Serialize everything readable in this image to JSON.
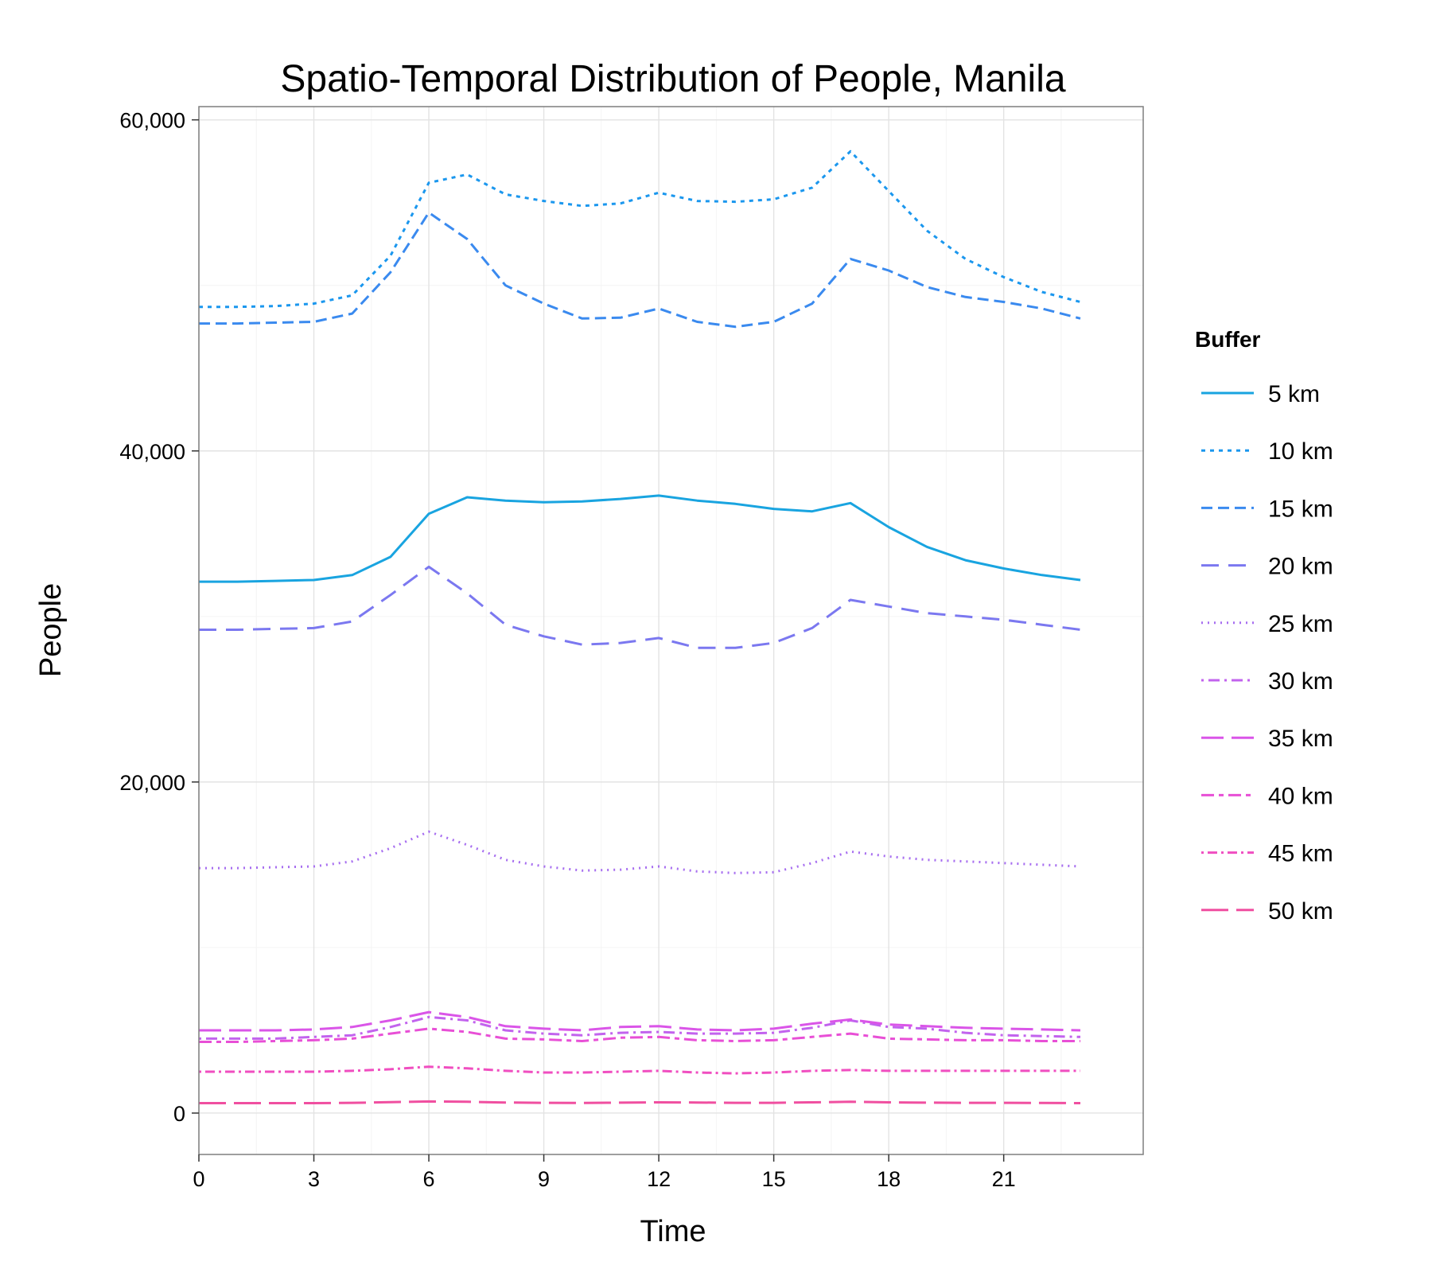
{
  "chart_data": {
    "type": "line",
    "title": "Spatio-Temporal Distribution of People, Manila",
    "xlabel": "Time",
    "ylabel": "People",
    "xlim": [
      0,
      23
    ],
    "ylim": [
      -2500,
      60800
    ],
    "x_ticks": [
      0,
      3,
      6,
      9,
      12,
      15,
      18,
      21
    ],
    "x_tick_labels": [
      "0",
      "3",
      "6",
      "9",
      "12",
      "15",
      "18",
      "21"
    ],
    "y_ticks": [
      0,
      20000,
      40000,
      60000
    ],
    "y_tick_labels": [
      "0",
      "20,000",
      "40,000",
      "60,000"
    ],
    "grid": true,
    "legend_position": "right",
    "legend_title": "Buffer",
    "x": [
      0,
      1,
      2,
      3,
      4,
      5,
      6,
      7,
      8,
      9,
      10,
      11,
      12,
      13,
      14,
      15,
      16,
      17,
      18,
      19,
      20,
      21,
      22,
      23
    ],
    "series": [
      {
        "name": "5 km",
        "color": "#19a4e0",
        "dash": "solid",
        "values": [
          32100,
          32100,
          32150,
          32200,
          32500,
          33600,
          36200,
          37200,
          37000,
          36900,
          36950,
          37100,
          37300,
          37000,
          36800,
          36500,
          36350,
          36850,
          35400,
          34200,
          33400,
          32900,
          32500,
          32200
        ]
      },
      {
        "name": "10 km",
        "color": "#1b97ee",
        "dash": "dot",
        "values": [
          48700,
          48700,
          48750,
          48900,
          49400,
          51800,
          56200,
          56700,
          55500,
          55100,
          54800,
          54950,
          55600,
          55100,
          55050,
          55200,
          55900,
          58100,
          55700,
          53300,
          51600,
          50500,
          49600,
          49000
        ]
      },
      {
        "name": "15 km",
        "color": "#3a8aef",
        "dash": "dash",
        "values": [
          47700,
          47700,
          47750,
          47800,
          48300,
          50800,
          54400,
          52800,
          50000,
          48900,
          48000,
          48050,
          48600,
          47800,
          47500,
          47800,
          48900,
          51600,
          50900,
          49900,
          49300,
          49000,
          48600,
          48000
        ]
      },
      {
        "name": "20 km",
        "color": "#7b78f0",
        "dash": "longdash",
        "values": [
          29200,
          29200,
          29250,
          29300,
          29700,
          31300,
          33000,
          31400,
          29500,
          28800,
          28300,
          28400,
          28700,
          28100,
          28100,
          28400,
          29300,
          31000,
          30600,
          30200,
          30000,
          29800,
          29500,
          29200
        ]
      },
      {
        "name": "25 km",
        "color": "#a76ef0",
        "dash": "finedot",
        "values": [
          14800,
          14800,
          14850,
          14900,
          15200,
          16000,
          17000,
          16200,
          15300,
          14900,
          14650,
          14700,
          14900,
          14600,
          14500,
          14550,
          15100,
          15800,
          15500,
          15300,
          15200,
          15100,
          15000,
          14900
        ]
      },
      {
        "name": "30 km",
        "color": "#c263ee",
        "dash": "dotdash",
        "values": [
          4500,
          4500,
          4500,
          4600,
          4700,
          5200,
          5800,
          5600,
          5000,
          4800,
          4700,
          4850,
          4900,
          4800,
          4800,
          4850,
          5150,
          5600,
          5200,
          5100,
          4850,
          4700,
          4650,
          4600
        ]
      },
      {
        "name": "35 km",
        "color": "#da55e8",
        "dash": "longdash2",
        "values": [
          5000,
          5000,
          5000,
          5050,
          5200,
          5600,
          6100,
          5800,
          5250,
          5100,
          5000,
          5200,
          5250,
          5050,
          5000,
          5100,
          5400,
          5650,
          5350,
          5250,
          5150,
          5100,
          5050,
          5000
        ]
      },
      {
        "name": "40 km",
        "color": "#e84fd6",
        "dash": "twodash",
        "values": [
          4300,
          4300,
          4350,
          4400,
          4500,
          4800,
          5100,
          4900,
          4500,
          4450,
          4350,
          4550,
          4600,
          4400,
          4350,
          4400,
          4600,
          4800,
          4500,
          4450,
          4400,
          4400,
          4350,
          4350
        ]
      },
      {
        "name": "45 km",
        "color": "#f04ec0",
        "dash": "dotdash2",
        "values": [
          2500,
          2500,
          2500,
          2500,
          2550,
          2650,
          2800,
          2700,
          2550,
          2450,
          2450,
          2500,
          2550,
          2450,
          2400,
          2450,
          2550,
          2600,
          2550,
          2550,
          2550,
          2550,
          2550,
          2550
        ]
      },
      {
        "name": "50 km",
        "color": "#f04fa0",
        "dash": "longdash3",
        "values": [
          600,
          600,
          600,
          600,
          620,
          660,
          700,
          680,
          640,
          620,
          610,
          630,
          650,
          640,
          620,
          620,
          650,
          680,
          650,
          630,
          620,
          620,
          610,
          600
        ]
      }
    ]
  }
}
